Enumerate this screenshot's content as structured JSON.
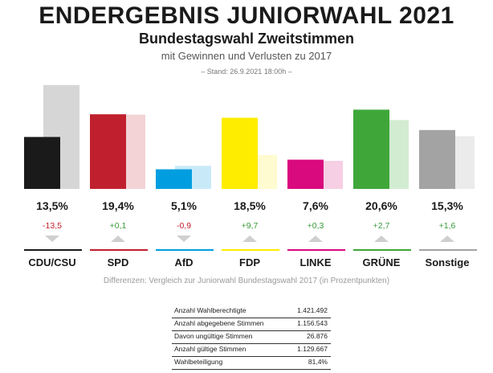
{
  "header": {
    "title": "ENDERGEBNIS JUNIORWAHL 2021",
    "subtitle": "Bundestagswahl Zweitstimmen",
    "subtitle2": "mit Gewinnen und Verlusten zu 2017",
    "stand": "– Stand: 26.9.2021 18:00h –"
  },
  "chart_data": {
    "type": "bar",
    "categories": [
      "CDU/CSU",
      "SPD",
      "AfD",
      "FDP",
      "LINKE",
      "GRÜNE",
      "Sonstige"
    ],
    "series": [
      {
        "values": [
          13.5,
          19.4,
          5.1,
          18.5,
          7.6,
          20.6,
          15.3
        ]
      },
      {
        "values": [
          27.0,
          19.3,
          6.0,
          8.8,
          7.3,
          17.9,
          13.7
        ]
      }
    ],
    "value_labels": [
      "13,5%",
      "19,4%",
      "5,1%",
      "18,5%",
      "7,6%",
      "20,6%",
      "15,3%"
    ],
    "diff_labels": [
      "-13,5",
      "+0,1",
      "-0,9",
      "+9,7",
      "+0,3",
      "+2,7",
      "+1,6"
    ],
    "diff_values": [
      -13.5,
      0.1,
      -0.9,
      9.7,
      0.3,
      2.7,
      1.6
    ],
    "colors": [
      "#1a1a1a",
      "#c0202e",
      "#009ee0",
      "#ffed00",
      "#d9097e",
      "#3fa73a",
      "#a3a3a3"
    ],
    "colors_2017": [
      "#d6d6d6",
      "#f3d3d6",
      "#c8eaf8",
      "#fffbd0",
      "#f6cfe4",
      "#d2ecd1",
      "#ebebeb"
    ],
    "gain_color": "#3a9a3a",
    "loss_color": "#c0202e",
    "ylim": [
      0,
      28
    ],
    "grid": false
  },
  "footnote": "Differenzen: Vergleich zur Juniorwahl Bundestagswahl 2017 (in Prozentpunkten)",
  "stats": [
    {
      "label": "Anzahl Wahlberechtigte",
      "value": "1.421.492"
    },
    {
      "label": "Anzahl abgegebene Stimmen",
      "value": "1.156.543"
    },
    {
      "label": "Davon ungültige Stimmen",
      "value": "26.876"
    },
    {
      "label": "Anzahl gültige Stimmen",
      "value": "1.129.667"
    },
    {
      "label": "Wahlbeteiligung",
      "value": "81,4%"
    }
  ]
}
